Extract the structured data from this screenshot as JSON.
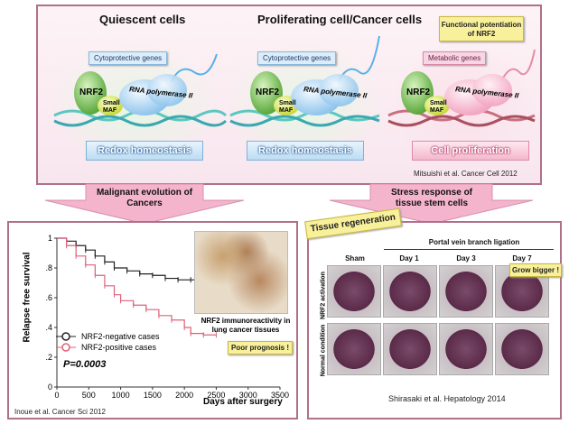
{
  "top_panel": {
    "quiescent_title": "Quiescent cells",
    "proliferating_title": "Proliferating cell/Cancer cells",
    "functional_callout": "Functional potentiation of NRF2",
    "cytoprotective_genes": "Cytoprotective genes",
    "metabolic_genes": "Metabolic genes",
    "nrf2": "NRF2",
    "small_maf": "Small MAF",
    "rna_pol": "RNA polymerase II",
    "redox": "Redox homeostasis",
    "cell_prolif": "Cell proliferation",
    "citation": "Mitsuishi et al. Cancer Cell 2012"
  },
  "arrows": {
    "left": "Malignant evolution of Cancers",
    "right": "Stress response of tissue stem cells"
  },
  "survival_panel": {
    "ylabel": "Relapse free survival",
    "xlabel": "Days after surgery",
    "inset_caption": "NRF2 immunoreactivity in lung cancer tissues",
    "poor_prognosis": "Poor prognosis !",
    "legend_negative": "NRF2-negative cases",
    "legend_positive": "NRF2-positive cases",
    "p_value": "P=0.0003",
    "citation": "Inoue et al. Cancer Sci 2012"
  },
  "chart_data": {
    "type": "line",
    "title": "",
    "xlabel": "Days after surgery",
    "ylabel": "Relapse free survival",
    "xlim": [
      0,
      3500
    ],
    "ylim": [
      0,
      1
    ],
    "x_ticks": [
      "0",
      "500",
      "1000",
      "1500",
      "2000",
      "2500",
      "3000",
      "3500"
    ],
    "y_ticks": [
      "0",
      ".2",
      ".4",
      ".6",
      ".8",
      "1"
    ],
    "legend": "bottom-left",
    "series": [
      {
        "name": "NRF2-negative cases",
        "color": "#222222",
        "x": [
          0,
          150,
          300,
          450,
          600,
          750,
          900,
          1100,
          1300,
          1500,
          1700,
          1900,
          2100,
          2300,
          2500
        ],
        "y": [
          1.0,
          0.98,
          0.95,
          0.92,
          0.88,
          0.84,
          0.8,
          0.78,
          0.76,
          0.75,
          0.73,
          0.72,
          0.72,
          0.72,
          0.72
        ]
      },
      {
        "name": "NRF2-positive cases",
        "color": "#e0607a",
        "x": [
          0,
          150,
          300,
          450,
          600,
          750,
          900,
          1000,
          1200,
          1400,
          1600,
          1800,
          2000,
          2100,
          2300,
          2500
        ],
        "y": [
          1.0,
          0.95,
          0.88,
          0.82,
          0.75,
          0.68,
          0.62,
          0.58,
          0.55,
          0.52,
          0.48,
          0.45,
          0.4,
          0.36,
          0.35,
          0.35
        ]
      }
    ]
  },
  "regen_panel": {
    "title": "Tissue regeneration",
    "ligation_header": "Portal vein branch ligation",
    "columns": [
      "Sham",
      "Day 1",
      "Day 3",
      "Day 7"
    ],
    "row_activation": "NRF2 activation",
    "row_normal": "Normal condition",
    "grow_bigger": "Grow bigger !",
    "citation": "Shirasaki et al. Hepatology 2014"
  }
}
